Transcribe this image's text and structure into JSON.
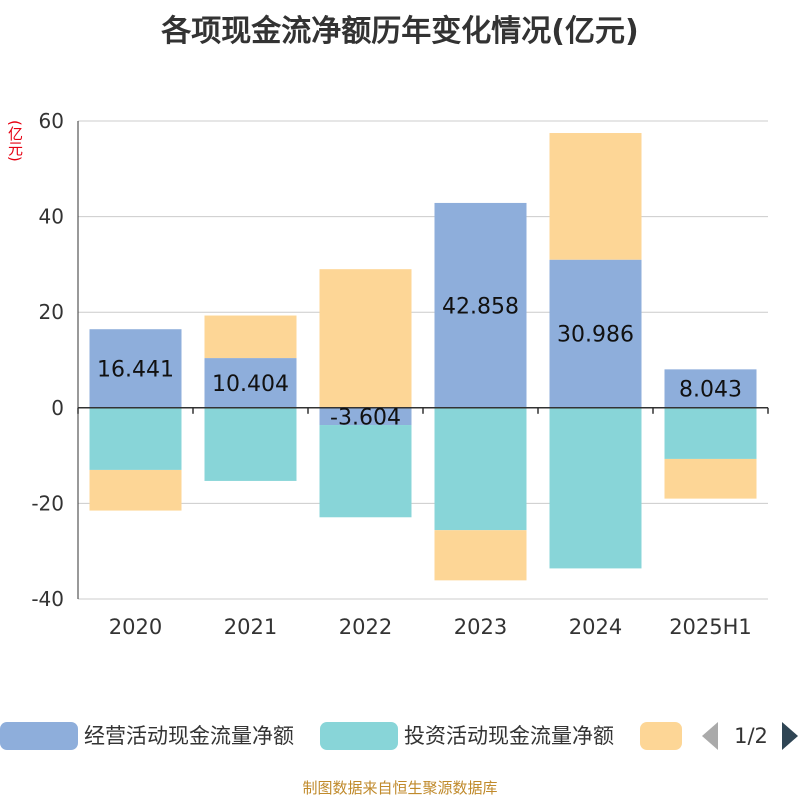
{
  "chart_data": {
    "type": "bar",
    "title": "各项现金流净额历年变化情况(亿元)",
    "ylabel": "(亿元)",
    "categories": [
      "2020",
      "2021",
      "2022",
      "2023",
      "2024",
      "2025H1"
    ],
    "ylim": [
      -40,
      60
    ],
    "yticks": [
      "60",
      "40",
      "20",
      "0",
      "-20",
      "-40"
    ],
    "stacked": true,
    "grid": true,
    "series": [
      {
        "name": "经营活动现金流量净额",
        "color": "#8eaedb",
        "values": [
          16.441,
          10.404,
          -3.604,
          42.858,
          30.986,
          8.043
        ],
        "labels": [
          "16.441",
          "10.404",
          "-3.604",
          "42.858",
          "30.986",
          "8.043"
        ]
      },
      {
        "name": "投资活动现金流量净额",
        "color": "#88d5d8",
        "values": [
          -13.0,
          -15.3,
          -19.3,
          -25.6,
          -33.6,
          -10.7
        ]
      },
      {
        "name": "",
        "color": "#fdd696",
        "values": [
          -8.5,
          8.9,
          29.0,
          -10.5,
          26.5,
          -8.3
        ]
      }
    ]
  },
  "legend": {
    "page": "1/2"
  },
  "source": "制图数据来自恒生聚源数据库"
}
